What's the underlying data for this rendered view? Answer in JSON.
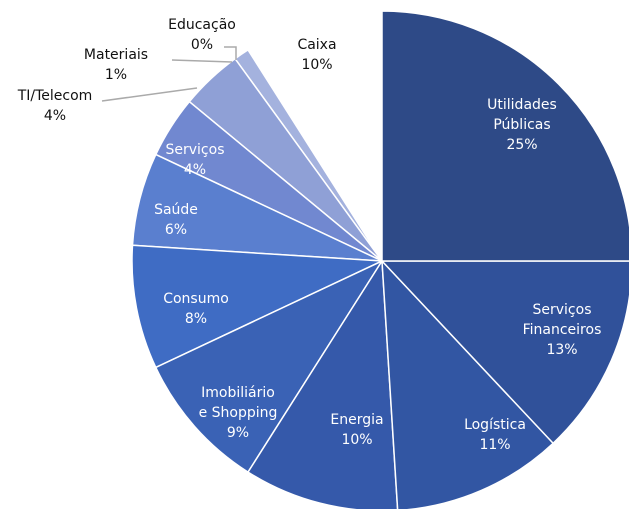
{
  "chart_data": {
    "type": "pie",
    "categories": [
      "Utilidades\nPúblicas",
      "Serviços\nFinanceiros",
      "Logística",
      "Energia",
      "Imobiliário\ne Shopping",
      "Consumo",
      "Saúde",
      "Serviços",
      "TI/Telecom",
      "Materiais",
      "Educação",
      "Caixa"
    ],
    "values": [
      25,
      13,
      11,
      10,
      9,
      8,
      6,
      4,
      4,
      1,
      0,
      10
    ],
    "value_labels": [
      "25%",
      "13%",
      "11%",
      "10%",
      "9%",
      "8%",
      "6%",
      "4%",
      "4%",
      "1%",
      "0%",
      "10%"
    ],
    "colors": [
      "#2e4a87",
      "#30519a",
      "#3256a3",
      "#3559aa",
      "#3a62b5",
      "#3f6cc4",
      "#5a7fcf",
      "#7188d0",
      "#8fa0d6",
      "#a4b2de",
      "#b5c0e4",
      "#ffffff"
    ]
  }
}
